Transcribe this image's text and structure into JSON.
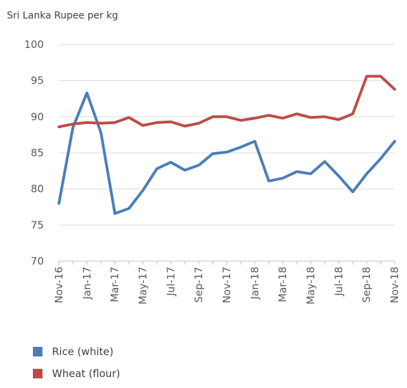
{
  "chart_data": {
    "type": "line",
    "ylabel": "Sri Lanka Rupee per kg",
    "ylim": [
      70,
      100
    ],
    "yticks": [
      70,
      75,
      80,
      85,
      90,
      95,
      100
    ],
    "grid": true,
    "legend_position": "bottom-left",
    "x": [
      "Nov-16",
      "Dec-16",
      "Jan-17",
      "Feb-17",
      "Mar-17",
      "Apr-17",
      "May-17",
      "Jun-17",
      "Jul-17",
      "Aug-17",
      "Sep-17",
      "Oct-17",
      "Nov-17",
      "Dec-17",
      "Jan-18",
      "Feb-18",
      "Mar-18",
      "Apr-18",
      "May-18",
      "Jun-18",
      "Jul-18",
      "Aug-18",
      "Sep-18",
      "Oct-18",
      "Nov-18"
    ],
    "xtick_labels": [
      "Nov-16",
      "Jan-17",
      "Mar-17",
      "May-17",
      "Jul-17",
      "Sep-17",
      "Nov-17",
      "Jan-18",
      "Mar-18",
      "May-18",
      "Jul-18",
      "Sep-18",
      "Nov-18"
    ],
    "series": [
      {
        "name": "Rice (white)",
        "color": "#4a7ebb",
        "values": [
          78.0,
          88.5,
          93.3,
          87.8,
          76.6,
          77.3,
          79.8,
          82.8,
          83.7,
          82.6,
          83.3,
          84.9,
          85.1,
          85.8,
          86.6,
          81.1,
          81.5,
          82.4,
          82.1,
          83.8,
          81.8,
          79.6,
          82.1,
          84.2,
          86.6
        ]
      },
      {
        "name": "Wheat (flour)",
        "color": "#be4b48",
        "values": [
          88.6,
          89.0,
          89.2,
          89.1,
          89.2,
          89.9,
          88.8,
          89.2,
          89.3,
          88.7,
          89.1,
          90.0,
          90.0,
          89.5,
          89.8,
          90.2,
          89.8,
          90.4,
          89.9,
          90.0,
          89.6,
          90.4,
          95.6,
          95.6,
          93.8
        ]
      }
    ]
  }
}
